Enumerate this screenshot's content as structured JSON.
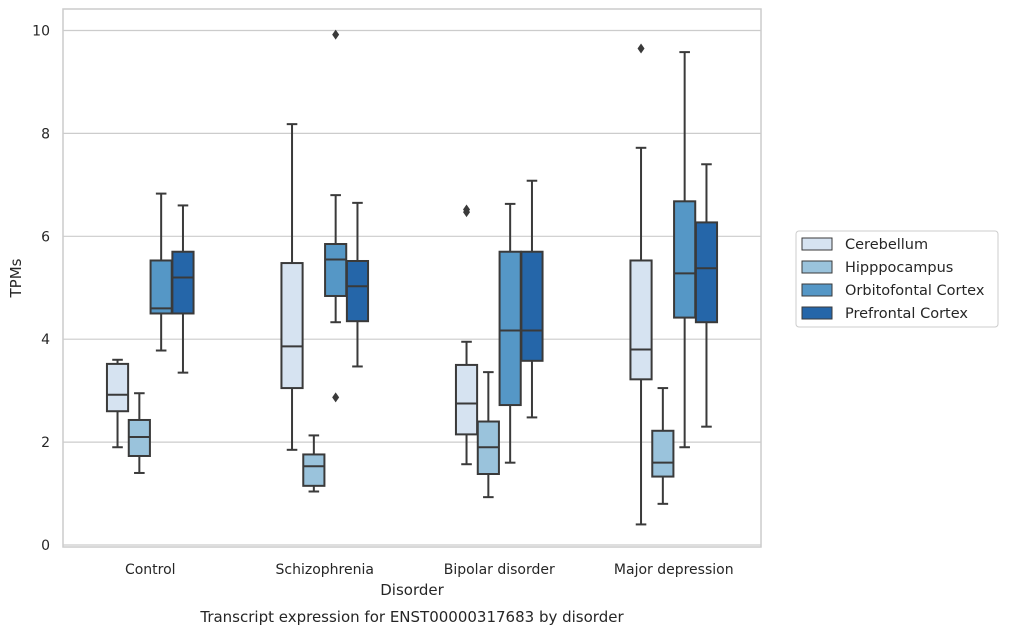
{
  "chart_data": {
    "type": "box",
    "title": "Transcript expression for ENST00000317683 by disorder",
    "xlabel": "Disorder",
    "ylabel": "TPMs",
    "ylim": [
      -0.05,
      10.4
    ],
    "yticks": [
      0,
      2,
      4,
      6,
      8,
      10
    ],
    "grid": true,
    "legend_position": "right",
    "categories": [
      "Control",
      "Schizophrenia",
      "Bipolar disorder",
      "Major depression"
    ],
    "series": [
      {
        "name": "Cerebellum",
        "color": "#d6e3f1",
        "boxes": [
          {
            "whislo": 1.9,
            "q1": 2.6,
            "med": 2.92,
            "q3": 3.52,
            "whishi": 3.6,
            "fliers": []
          },
          {
            "whislo": 1.85,
            "q1": 3.05,
            "med": 3.86,
            "q3": 5.48,
            "whishi": 8.18,
            "fliers": []
          },
          {
            "whislo": 1.57,
            "q1": 2.15,
            "med": 2.75,
            "q3": 3.5,
            "whishi": 3.95,
            "fliers": [
              6.47,
              6.52
            ]
          },
          {
            "whislo": 0.4,
            "q1": 3.22,
            "med": 3.8,
            "q3": 5.53,
            "whishi": 7.72,
            "fliers": [
              9.65
            ]
          }
        ]
      },
      {
        "name": "Hipppocampus",
        "color": "#9ac3dc",
        "boxes": [
          {
            "whislo": 1.4,
            "q1": 1.73,
            "med": 2.1,
            "q3": 2.43,
            "whishi": 2.95,
            "fliers": []
          },
          {
            "whislo": 1.04,
            "q1": 1.15,
            "med": 1.53,
            "q3": 1.76,
            "whishi": 2.13,
            "fliers": []
          },
          {
            "whislo": 0.93,
            "q1": 1.38,
            "med": 1.9,
            "q3": 2.4,
            "whishi": 3.36,
            "fliers": []
          },
          {
            "whislo": 0.8,
            "q1": 1.33,
            "med": 1.6,
            "q3": 2.22,
            "whishi": 3.05,
            "fliers": []
          }
        ]
      },
      {
        "name": "Orbitofontal Cortex",
        "color": "#5597c6",
        "boxes": [
          {
            "whislo": 3.78,
            "q1": 4.5,
            "med": 4.6,
            "q3": 5.53,
            "whishi": 6.83,
            "fliers": []
          },
          {
            "whislo": 4.33,
            "q1": 4.84,
            "med": 5.55,
            "q3": 5.85,
            "whishi": 6.8,
            "fliers": [
              2.87,
              9.92
            ]
          },
          {
            "whislo": 1.6,
            "q1": 2.72,
            "med": 4.17,
            "q3": 5.7,
            "whishi": 6.63,
            "fliers": []
          },
          {
            "whislo": 1.9,
            "q1": 4.42,
            "med": 5.28,
            "q3": 6.68,
            "whishi": 9.58,
            "fliers": []
          }
        ]
      },
      {
        "name": "Prefrontal Cortex",
        "color": "#2566a9",
        "boxes": [
          {
            "whislo": 3.35,
            "q1": 4.5,
            "med": 5.2,
            "q3": 5.7,
            "whishi": 6.6,
            "fliers": []
          },
          {
            "whislo": 3.47,
            "q1": 4.35,
            "med": 5.03,
            "q3": 5.52,
            "whishi": 6.65,
            "fliers": []
          },
          {
            "whislo": 2.48,
            "q1": 3.58,
            "med": 4.17,
            "q3": 5.7,
            "whishi": 7.08,
            "fliers": []
          },
          {
            "whislo": 2.3,
            "q1": 4.33,
            "med": 5.38,
            "q3": 6.27,
            "whishi": 7.4,
            "fliers": []
          }
        ]
      }
    ]
  },
  "colors": {
    "box_edge": "#3a3a3a",
    "grid": "#cccccc",
    "frame": "#cccccc",
    "text": "#262626"
  }
}
